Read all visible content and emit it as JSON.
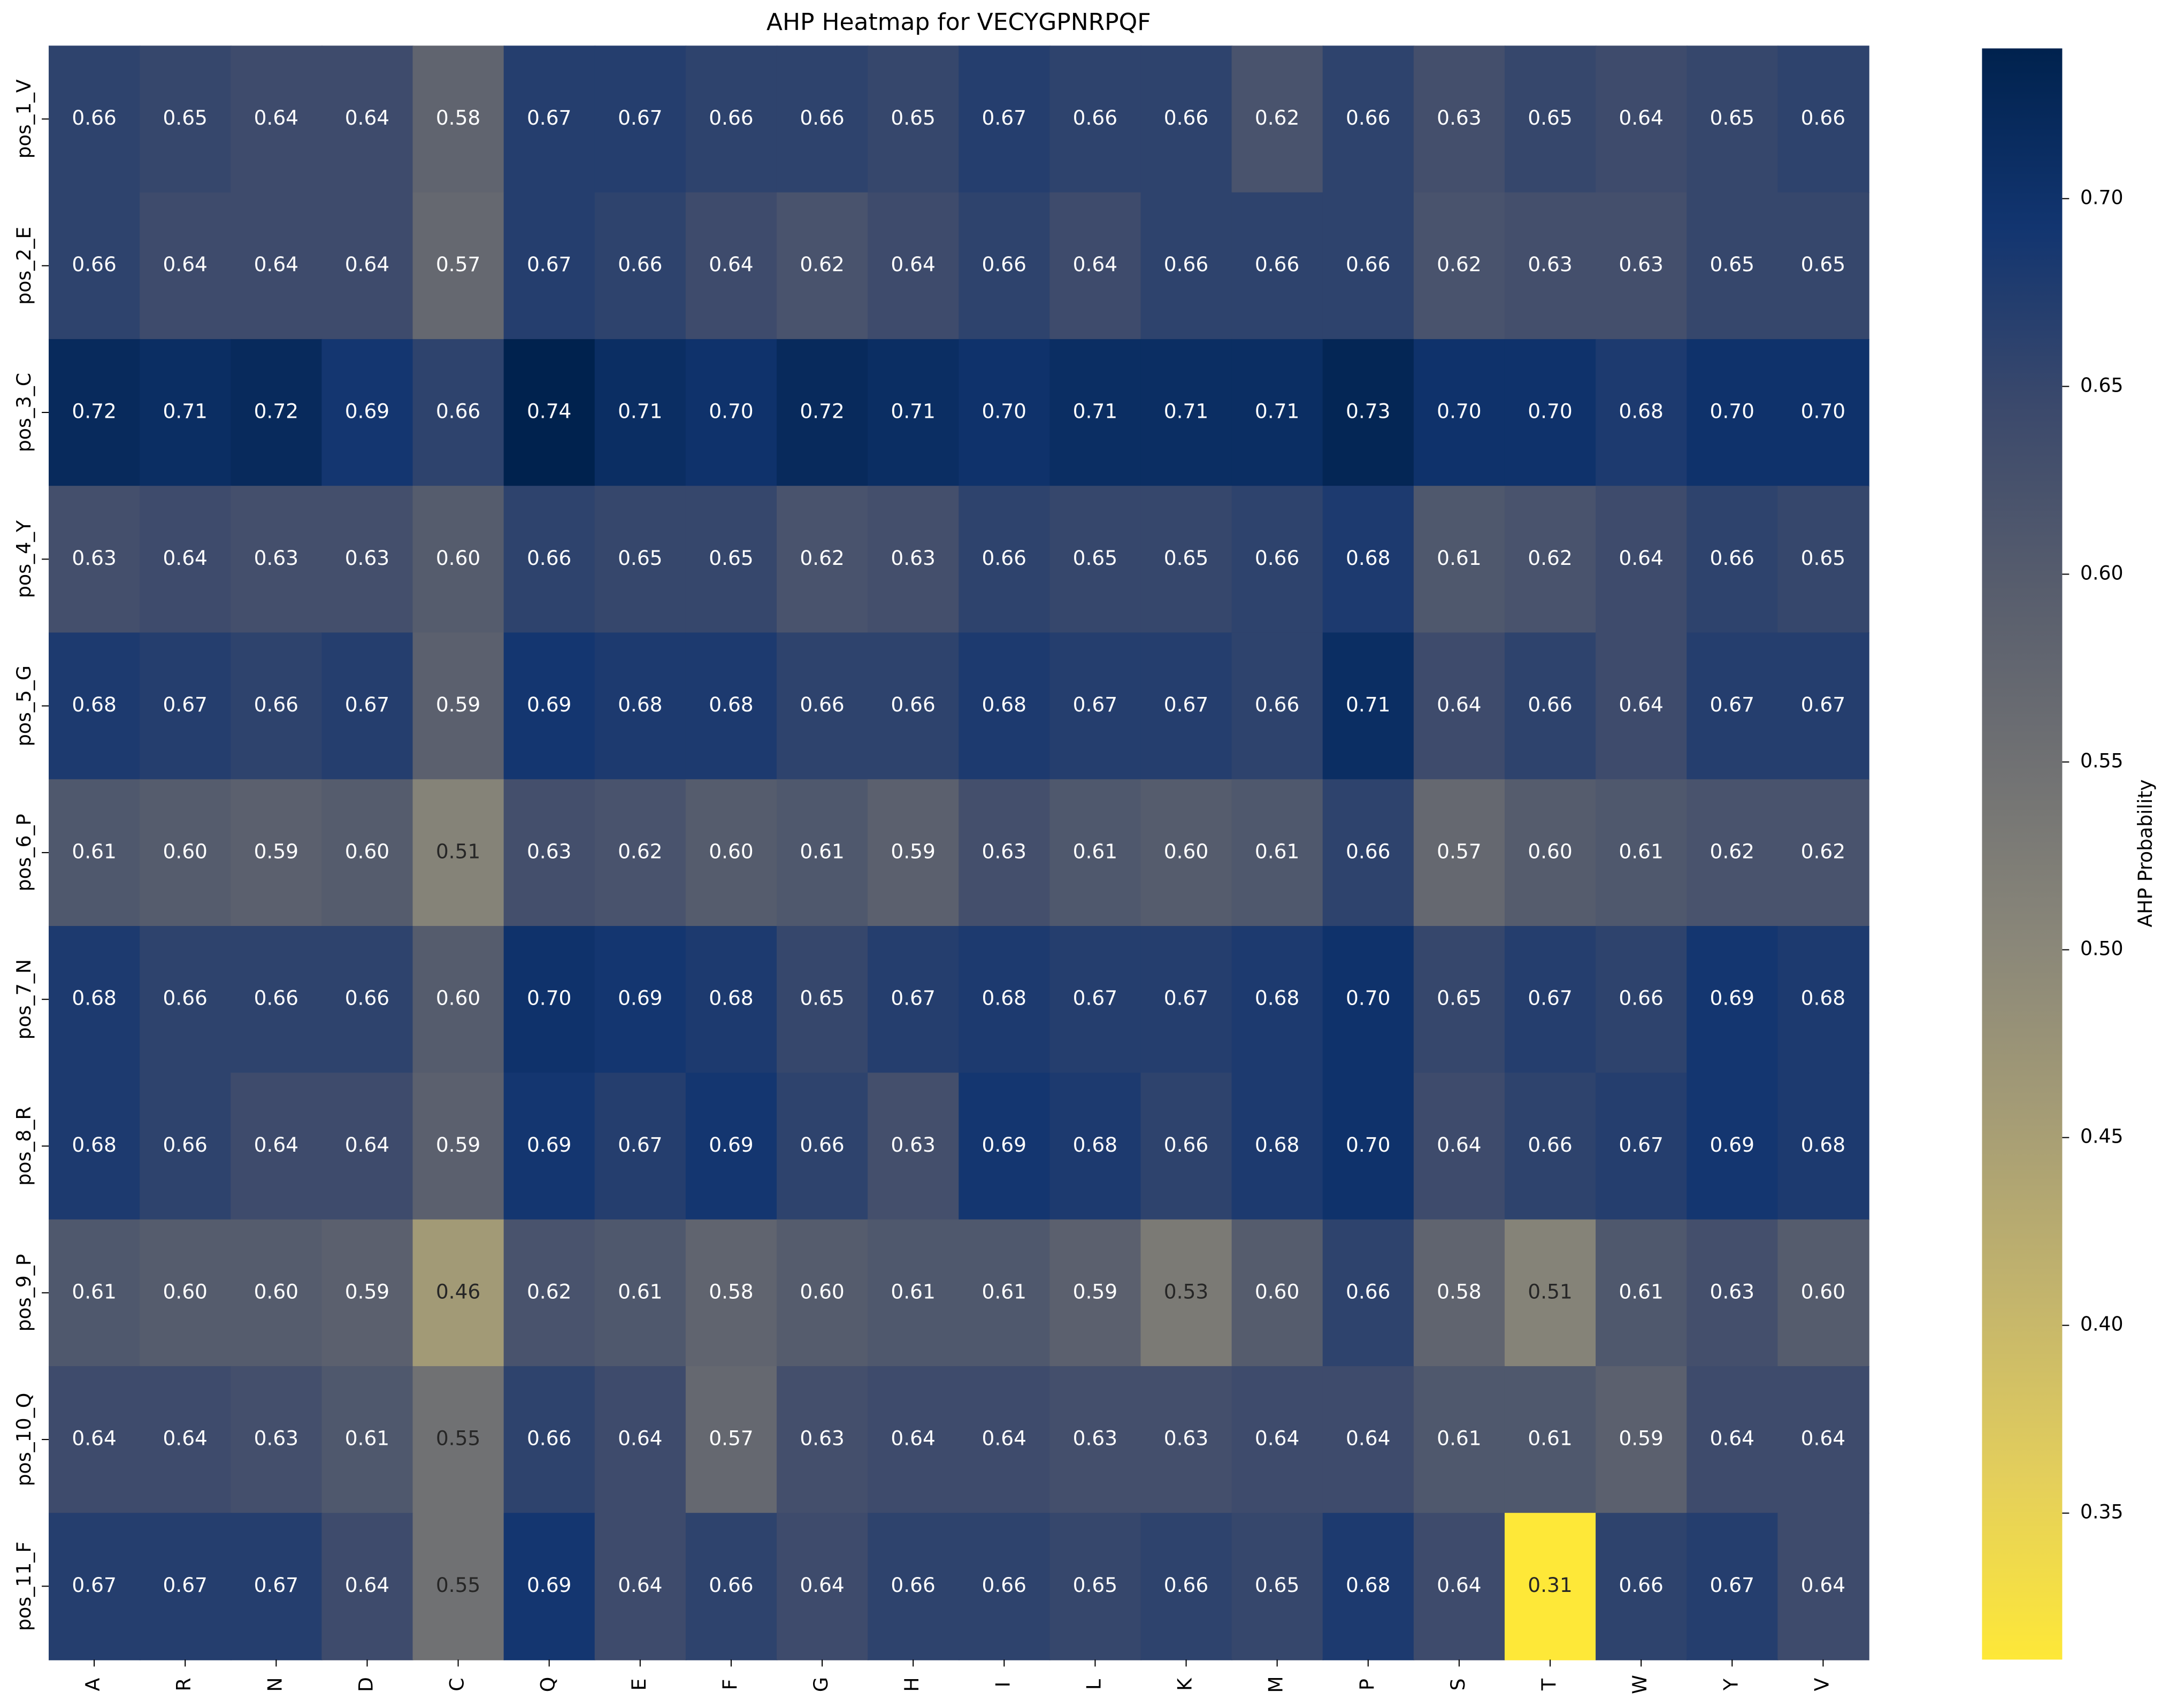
{
  "chart_data": {
    "type": "heatmap",
    "title": "AHP Heatmap for VECYGPNRPQF",
    "colorbar_label": "AHP Probability",
    "colormap": "cividis_r",
    "x_categories": [
      "A",
      "R",
      "N",
      "D",
      "C",
      "Q",
      "E",
      "F",
      "G",
      "H",
      "I",
      "L",
      "K",
      "M",
      "P",
      "S",
      "T",
      "W",
      "Y",
      "V"
    ],
    "y_categories": [
      "pos_1_V",
      "pos_2_E",
      "pos_3_C",
      "pos_4_Y",
      "pos_5_G",
      "pos_6_P",
      "pos_7_N",
      "pos_8_R",
      "pos_9_P",
      "pos_10_Q",
      "pos_11_F"
    ],
    "values": [
      [
        0.66,
        0.65,
        0.64,
        0.64,
        0.58,
        0.67,
        0.67,
        0.66,
        0.66,
        0.65,
        0.67,
        0.66,
        0.66,
        0.62,
        0.66,
        0.63,
        0.65,
        0.64,
        0.65,
        0.66
      ],
      [
        0.66,
        0.64,
        0.64,
        0.64,
        0.57,
        0.67,
        0.66,
        0.64,
        0.62,
        0.64,
        0.66,
        0.64,
        0.66,
        0.66,
        0.66,
        0.62,
        0.63,
        0.63,
        0.65,
        0.65
      ],
      [
        0.72,
        0.71,
        0.72,
        0.69,
        0.66,
        0.74,
        0.71,
        0.7,
        0.72,
        0.71,
        0.7,
        0.71,
        0.71,
        0.71,
        0.73,
        0.7,
        0.7,
        0.68,
        0.7,
        0.7
      ],
      [
        0.63,
        0.64,
        0.63,
        0.63,
        0.6,
        0.66,
        0.65,
        0.65,
        0.62,
        0.63,
        0.66,
        0.65,
        0.65,
        0.66,
        0.68,
        0.61,
        0.62,
        0.64,
        0.66,
        0.65
      ],
      [
        0.68,
        0.67,
        0.66,
        0.67,
        0.59,
        0.69,
        0.68,
        0.68,
        0.66,
        0.66,
        0.68,
        0.67,
        0.67,
        0.66,
        0.71,
        0.64,
        0.66,
        0.64,
        0.67,
        0.67
      ],
      [
        0.61,
        0.6,
        0.59,
        0.6,
        0.51,
        0.63,
        0.62,
        0.6,
        0.61,
        0.59,
        0.63,
        0.61,
        0.6,
        0.61,
        0.66,
        0.57,
        0.6,
        0.61,
        0.62,
        0.62
      ],
      [
        0.68,
        0.66,
        0.66,
        0.66,
        0.6,
        0.7,
        0.69,
        0.68,
        0.65,
        0.67,
        0.68,
        0.67,
        0.67,
        0.68,
        0.7,
        0.65,
        0.67,
        0.66,
        0.69,
        0.68
      ],
      [
        0.68,
        0.66,
        0.64,
        0.64,
        0.59,
        0.69,
        0.67,
        0.69,
        0.66,
        0.63,
        0.69,
        0.68,
        0.66,
        0.68,
        0.7,
        0.64,
        0.66,
        0.67,
        0.69,
        0.68
      ],
      [
        0.61,
        0.6,
        0.6,
        0.59,
        0.46,
        0.62,
        0.61,
        0.58,
        0.6,
        0.61,
        0.61,
        0.59,
        0.53,
        0.6,
        0.66,
        0.58,
        0.51,
        0.61,
        0.63,
        0.6
      ],
      [
        0.64,
        0.64,
        0.63,
        0.61,
        0.55,
        0.66,
        0.64,
        0.57,
        0.63,
        0.64,
        0.64,
        0.63,
        0.63,
        0.64,
        0.64,
        0.61,
        0.61,
        0.59,
        0.64,
        0.64
      ],
      [
        0.67,
        0.67,
        0.67,
        0.64,
        0.55,
        0.69,
        0.64,
        0.66,
        0.64,
        0.66,
        0.66,
        0.65,
        0.66,
        0.65,
        0.68,
        0.64,
        0.31,
        0.66,
        0.67,
        0.64
      ]
    ],
    "value_labels": [
      [
        "0.66",
        "0.65",
        "0.64",
        "0.64",
        "0.58",
        "0.67",
        "0.67",
        "0.66",
        "0.66",
        "0.65",
        "0.67",
        "0.66",
        "0.66",
        "0.62",
        "0.66",
        "0.63",
        "0.65",
        "0.64",
        "0.65",
        "0.66"
      ],
      [
        "0.66",
        "0.64",
        "0.64",
        "0.64",
        "0.57",
        "0.67",
        "0.66",
        "0.64",
        "0.62",
        "0.64",
        "0.66",
        "0.64",
        "0.66",
        "0.66",
        "0.66",
        "0.62",
        "0.63",
        "0.63",
        "0.65",
        "0.65"
      ],
      [
        "0.72",
        "0.71",
        "0.72",
        "0.69",
        "0.66",
        "0.74",
        "0.71",
        "0.70",
        "0.72",
        "0.71",
        "0.70",
        "0.71",
        "0.71",
        "0.71",
        "0.73",
        "0.70",
        "0.70",
        "0.68",
        "0.70",
        "0.70"
      ],
      [
        "0.63",
        "0.64",
        "0.63",
        "0.63",
        "0.60",
        "0.66",
        "0.65",
        "0.65",
        "0.62",
        "0.63",
        "0.66",
        "0.65",
        "0.65",
        "0.66",
        "0.68",
        "0.61",
        "0.62",
        "0.64",
        "0.66",
        "0.65"
      ],
      [
        "0.68",
        "0.67",
        "0.66",
        "0.67",
        "0.59",
        "0.69",
        "0.68",
        "0.68",
        "0.66",
        "0.66",
        "0.68",
        "0.67",
        "0.67",
        "0.66",
        "0.71",
        "0.64",
        "0.66",
        "0.64",
        "0.67",
        "0.67"
      ],
      [
        "0.61",
        "0.60",
        "0.59",
        "0.60",
        "0.51",
        "0.63",
        "0.62",
        "0.60",
        "0.61",
        "0.59",
        "0.63",
        "0.61",
        "0.60",
        "0.61",
        "0.66",
        "0.57",
        "0.60",
        "0.61",
        "0.62",
        "0.62"
      ],
      [
        "0.68",
        "0.66",
        "0.66",
        "0.66",
        "0.60",
        "0.70",
        "0.69",
        "0.68",
        "0.65",
        "0.67",
        "0.68",
        "0.67",
        "0.67",
        "0.68",
        "0.70",
        "0.65",
        "0.67",
        "0.66",
        "0.69",
        "0.68"
      ],
      [
        "0.68",
        "0.66",
        "0.64",
        "0.64",
        "0.59",
        "0.69",
        "0.67",
        "0.69",
        "0.66",
        "0.63",
        "0.69",
        "0.68",
        "0.66",
        "0.68",
        "0.70",
        "0.64",
        "0.66",
        "0.67",
        "0.69",
        "0.68"
      ],
      [
        "0.61",
        "0.60",
        "0.60",
        "0.59",
        "0.46",
        "0.62",
        "0.61",
        "0.58",
        "0.60",
        "0.61",
        "0.61",
        "0.59",
        "0.53",
        "0.60",
        "0.66",
        "0.58",
        "0.51",
        "0.61",
        "0.63",
        "0.60"
      ],
      [
        "0.64",
        "0.64",
        "0.63",
        "0.61",
        "0.55",
        "0.66",
        "0.64",
        "0.57",
        "0.63",
        "0.64",
        "0.64",
        "0.63",
        "0.63",
        "0.64",
        "0.64",
        "0.61",
        "0.61",
        "0.59",
        "0.64",
        "0.64"
      ],
      [
        "0.67",
        "0.67",
        "0.67",
        "0.64",
        "0.55",
        "0.69",
        "0.64",
        "0.66",
        "0.64",
        "0.66",
        "0.66",
        "0.65",
        "0.66",
        "0.65",
        "0.68",
        "0.64",
        "0.31",
        "0.66",
        "0.67",
        "0.64"
      ]
    ],
    "clim": [
      0.311,
      0.74
    ],
    "cticks": [
      0.35,
      {
        "value": 0.4,
        "label": "0.40"
      },
      0.45,
      {
        "value": 0.5,
        "label": "0.50"
      },
      0.55,
      {
        "value": 0.6,
        "label": "0.60"
      },
      0.65,
      {
        "value": 0.7,
        "label": "0.70"
      }
    ]
  }
}
